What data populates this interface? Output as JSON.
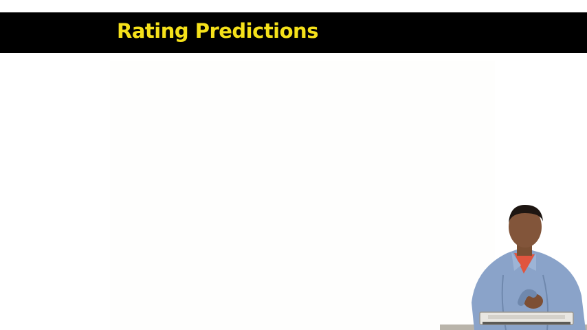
{
  "slide": {
    "title": "Rating Predictions"
  },
  "colors": {
    "title_bar": "#000000",
    "title_text": "#f5e11a",
    "background": "#ffffff"
  },
  "presenter": {
    "icon": "presenter-video-figure"
  }
}
